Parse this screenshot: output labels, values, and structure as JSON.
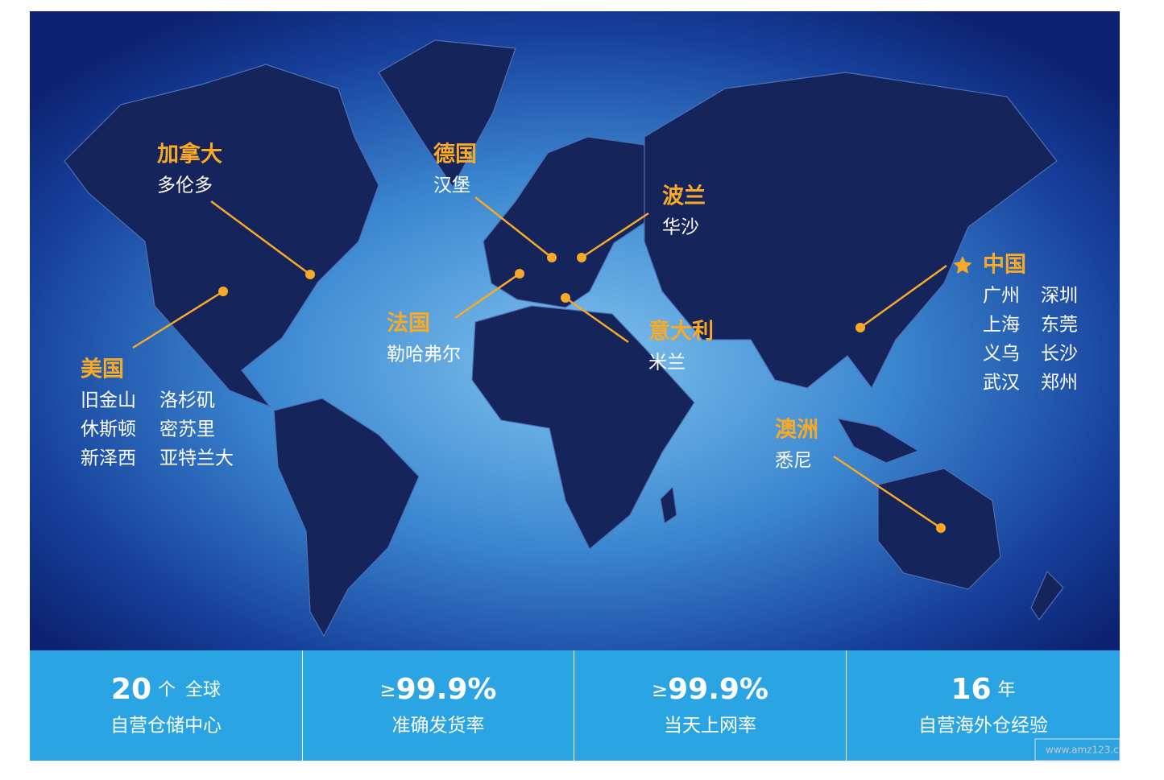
{
  "locations": [
    {
      "country": "加拿大",
      "cities": [
        "多伦多"
      ]
    },
    {
      "country": "美国",
      "cities": [
        "旧金山",
        "洛杉矶",
        "休斯顿",
        "密苏里",
        "新泽西",
        "亚特兰大"
      ]
    },
    {
      "country": "德国",
      "cities": [
        "汉堡"
      ]
    },
    {
      "country": "波兰",
      "cities": [
        "华沙"
      ]
    },
    {
      "country": "法国",
      "cities": [
        "勒哈弗尔"
      ]
    },
    {
      "country": "意大利",
      "cities": [
        "米兰"
      ]
    },
    {
      "country": "中国",
      "cities": [
        "广州",
        "深圳",
        "上海",
        "东莞",
        "义乌",
        "长沙",
        "武汉",
        "郑州"
      ]
    },
    {
      "country": "澳洲",
      "cities": [
        "悉尼"
      ]
    }
  ],
  "stats": [
    {
      "value": "20",
      "unit": "个",
      "extra": "全球",
      "caption": "自营仓储中心"
    },
    {
      "prefix": "≥",
      "value": "99.9%",
      "caption": "准确发货率"
    },
    {
      "prefix": "≥",
      "value": "99.9%",
      "caption": "当天上网率"
    },
    {
      "value": "16",
      "unit": "年",
      "caption": "自营海外仓经验"
    }
  ],
  "watermark": "www.amz123.c"
}
